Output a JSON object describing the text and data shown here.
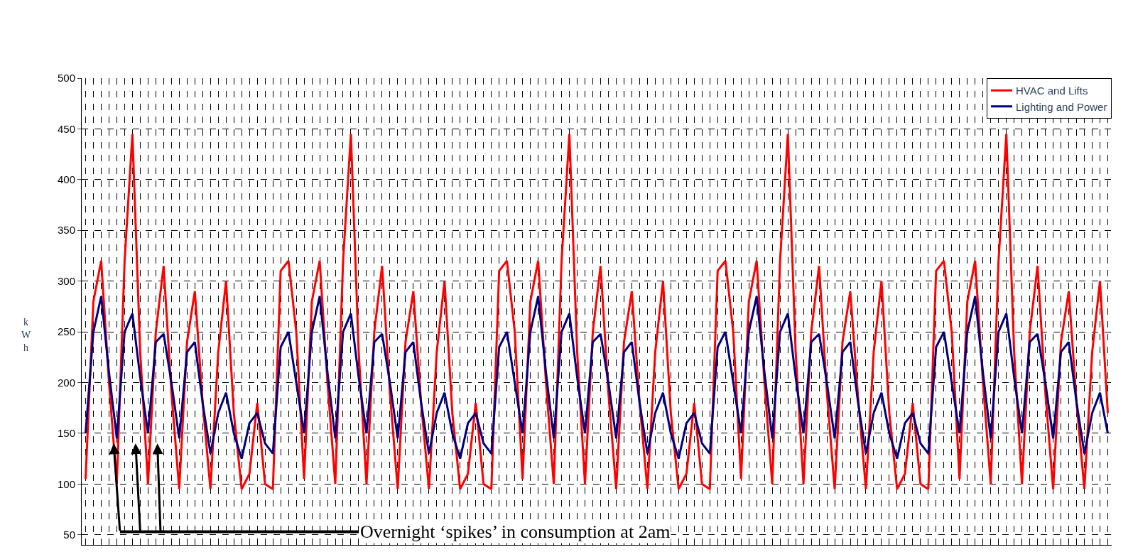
{
  "chart_data": {
    "type": "line",
    "ylabel": "kWh",
    "categories": [
      null,
      null,
      null,
      null,
      null,
      null,
      null,
      null,
      null,
      null,
      null,
      null,
      null,
      null,
      null,
      null,
      null,
      null,
      null,
      null,
      null,
      null,
      null,
      null,
      null,
      null,
      null,
      null,
      null,
      null,
      null,
      null,
      null,
      null,
      null,
      null,
      null,
      null,
      null,
      null,
      null,
      null,
      null,
      null,
      null,
      null,
      null,
      null,
      null,
      null,
      null,
      null,
      null,
      null,
      null,
      null,
      null,
      null,
      null,
      null,
      null,
      null,
      null,
      null,
      null,
      null,
      null,
      null,
      null,
      null,
      null,
      null,
      null,
      null,
      null,
      null,
      null,
      null,
      null,
      null,
      null,
      null,
      null,
      null,
      null,
      null,
      null,
      null,
      null,
      null,
      null,
      null,
      null,
      null,
      null,
      null,
      null,
      null,
      null,
      null,
      null,
      null,
      null,
      null,
      null,
      null,
      null,
      null,
      null,
      null,
      null,
      null,
      null,
      null,
      null,
      null,
      null,
      null,
      null,
      null,
      null,
      null,
      null,
      null,
      null,
      null,
      null,
      null,
      null,
      null,
      null,
      null
    ],
    "series": [
      {
        "name": "HVAC and Lifts",
        "color": "#ff0000",
        "values": [
          105,
          280,
          320,
          200,
          100,
          320,
          445,
          230,
          100,
          250,
          315,
          190,
          95,
          240,
          290,
          180,
          95,
          230,
          300,
          170,
          95,
          110,
          180,
          100,
          95,
          310,
          320,
          250,
          105,
          280,
          320,
          200,
          100,
          320,
          445,
          230,
          100,
          250,
          315,
          190,
          95,
          240,
          290,
          180,
          95,
          230,
          300,
          170,
          95,
          110,
          180,
          100,
          95,
          310,
          320,
          250,
          105,
          280,
          320,
          200,
          100,
          320,
          445,
          230,
          100,
          250,
          315,
          190,
          95,
          240,
          290,
          180,
          95,
          230,
          300,
          170,
          95,
          110,
          180,
          100,
          95,
          310,
          320,
          250,
          105,
          280,
          320,
          200,
          100,
          320,
          445,
          230,
          100,
          250,
          315,
          190,
          95,
          240,
          290,
          185,
          95,
          230,
          300,
          170,
          95,
          110,
          180,
          100,
          95,
          310,
          320,
          250,
          105,
          280,
          320,
          200,
          100,
          320,
          445,
          230,
          100,
          250,
          315,
          190,
          95,
          240,
          290,
          180,
          95,
          230,
          300,
          170
        ]
      },
      {
        "name": "Lighting and Power",
        "color": "#000080",
        "values": [
          150,
          250,
          285,
          210,
          145,
          250,
          268,
          205,
          150,
          240,
          248,
          200,
          145,
          230,
          240,
          180,
          130,
          170,
          190,
          150,
          125,
          160,
          170,
          140,
          130,
          235,
          250,
          200,
          150,
          250,
          285,
          210,
          145,
          250,
          268,
          205,
          150,
          240,
          248,
          200,
          145,
          230,
          240,
          180,
          130,
          170,
          190,
          150,
          125,
          160,
          170,
          140,
          130,
          235,
          250,
          200,
          150,
          250,
          285,
          210,
          145,
          250,
          268,
          205,
          150,
          240,
          248,
          200,
          145,
          230,
          240,
          180,
          130,
          170,
          190,
          150,
          125,
          160,
          170,
          140,
          130,
          235,
          250,
          200,
          150,
          250,
          285,
          210,
          145,
          250,
          268,
          205,
          150,
          240,
          248,
          200,
          145,
          230,
          240,
          180,
          130,
          170,
          190,
          150,
          125,
          160,
          170,
          140,
          130,
          235,
          250,
          200,
          150,
          250,
          285,
          210,
          145,
          250,
          268,
          205,
          150,
          240,
          248,
          200,
          145,
          230,
          240,
          180,
          130,
          170,
          190,
          150
        ]
      }
    ],
    "ylim": [
      40,
      500
    ],
    "yticks": [
      50,
      100,
      150,
      200,
      250,
      300,
      350,
      400,
      450,
      500
    ],
    "grid": true,
    "legend": "top right",
    "marker": "none",
    "line_style": "solid",
    "annotations": [
      "Overnight ‘spikes’ in consumption at 2am"
    ]
  }
}
